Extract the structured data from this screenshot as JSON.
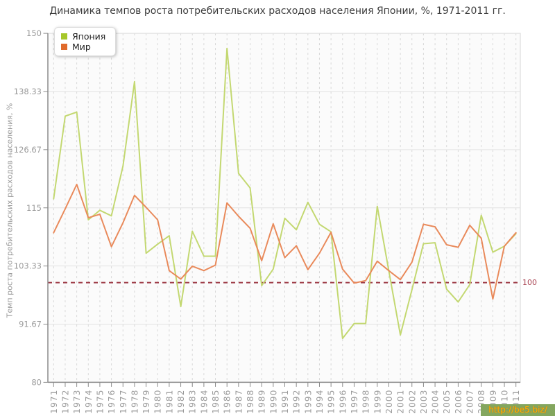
{
  "title": "Динамика темпов роста потребительских расходов населения Японии, %, 1971-2011 гг.",
  "y_axis": {
    "label": "Темп роста потребительских расходов населения, %"
  },
  "legend": {
    "items": [
      {
        "label": "Япония",
        "swatch": "#a6c72a"
      },
      {
        "label": "Мир",
        "swatch": "#e06a2b"
      }
    ]
  },
  "watermark": {
    "text": "http://be5.biz/",
    "bg": "#83a65e",
    "color": "#ffb400"
  },
  "colors": {
    "plot_bg": "#fbfbfb",
    "grid_solid": "#e2e2e2",
    "grid_dashed": "#d8d8d8",
    "axis": "#8a8a8a",
    "border": "#d5d5d5",
    "tick_text": "#9a9a9a"
  },
  "chart_data": {
    "type": "line",
    "title": "Динамика темпов роста потребительских расходов населения Японии, %, 1971-2011 гг.",
    "xlabel": "",
    "ylabel": "Темп роста потребительских расходов населения, %",
    "ylim": [
      80,
      150
    ],
    "grid": true,
    "legend_position": "top-left",
    "x_label_rotation": -90,
    "y_tick_labels": [
      "150",
      "138.33",
      "126.67",
      "115",
      "103.33",
      "91.67",
      "80"
    ],
    "y_tick_values": [
      150,
      138.33,
      126.67,
      115,
      103.33,
      91.67,
      80
    ],
    "x": [
      "1971",
      "1972",
      "1973",
      "1974",
      "1975",
      "1976",
      "1977",
      "1978",
      "1979",
      "1980",
      "1981",
      "1982",
      "1983",
      "1984",
      "1985",
      "1986",
      "1987",
      "1988",
      "1989",
      "1990",
      "1991",
      "1992",
      "1993",
      "1994",
      "1995",
      "1996",
      "1997",
      "1998",
      "1999",
      "2000",
      "2001",
      "2002",
      "2003",
      "2004",
      "2005",
      "2006",
      "2007",
      "2008",
      "2009",
      "2010",
      "2011"
    ],
    "series": [
      {
        "name": "Япония",
        "color": "#c3d871",
        "values": [
          116.8,
          133.4,
          134.2,
          112.6,
          114.5,
          113.4,
          123.4,
          140.3,
          105.9,
          107.7,
          109.4,
          95.2,
          110.3,
          105.3,
          105.3,
          147.0,
          121.9,
          119.0,
          99.4,
          102.7,
          112.9,
          110.6,
          116.1,
          111.7,
          110.2,
          88.8,
          91.8,
          91.8,
          115.3,
          102.4,
          89.5,
          98.6,
          107.8,
          108.0,
          98.7,
          96.1,
          99.6,
          113.5,
          106.1,
          107.3,
          109.8
        ]
      },
      {
        "name": "Мир",
        "color": "#e98a5b",
        "values": [
          110.0,
          114.8,
          119.7,
          113.0,
          113.7,
          107.2,
          112.0,
          117.5,
          115.1,
          112.6,
          102.4,
          100.7,
          103.3,
          102.4,
          103.5,
          116.0,
          113.3,
          110.9,
          104.4,
          111.8,
          105.0,
          107.4,
          102.6,
          105.9,
          110.1,
          102.7,
          99.9,
          100.4,
          104.3,
          102.4,
          100.6,
          104.1,
          111.7,
          111.2,
          107.6,
          107.1,
          111.5,
          108.9,
          96.7,
          107.3,
          110.0
        ]
      }
    ],
    "ref_line": {
      "value": 100,
      "label": "100",
      "color": "#9d3a46"
    }
  }
}
